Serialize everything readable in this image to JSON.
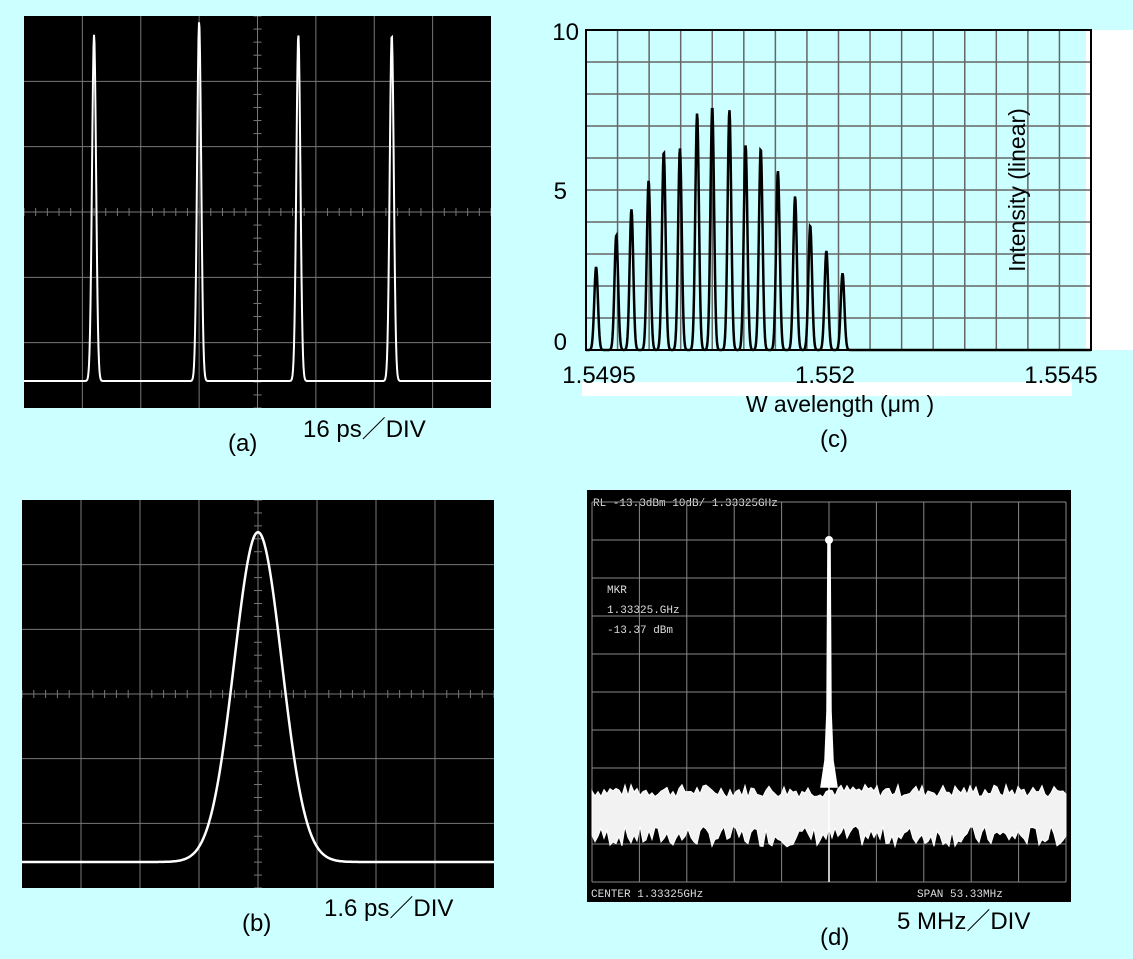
{
  "panels": {
    "a": {
      "caption": "(a)",
      "scale": "16 ps／DIV"
    },
    "b": {
      "caption": "(b)",
      "scale": "1.6 ps／DIV"
    },
    "c": {
      "caption": "(c)"
    },
    "d": {
      "caption": "(d)",
      "scale": "5 MHz／DIV",
      "screen_top": "RL -13.3dBm    10dB/   1.33325GHz",
      "marker_title": "MKR",
      "marker_freq": "1.33325.GHz",
      "marker_level": "-13.37 dBm",
      "screen_center": "CENTER 1.33325GHz",
      "screen_span": "SPAN 53.33MHz"
    }
  },
  "chart_data": [
    {
      "id": "a",
      "type": "line",
      "title": "",
      "xlabel": "",
      "ylabel": "",
      "x_scale": "16 ps/DIV",
      "divisions": [
        8,
        6
      ],
      "pulse_centers_div": [
        1.2,
        3.0,
        4.7,
        6.3
      ],
      "pulse_heights_div": [
        5.3,
        5.5,
        5.3,
        5.3
      ],
      "grid": true
    },
    {
      "id": "b",
      "type": "line",
      "title": "",
      "xlabel": "",
      "ylabel": "",
      "x_scale": "1.6 ps/DIV",
      "divisions": [
        8,
        6
      ],
      "pulse_center_div": 4.0,
      "pulse_height_div": 5.1,
      "pulse_fwhm_div": 0.95,
      "grid": true
    },
    {
      "id": "c",
      "type": "line",
      "title": "",
      "xlabel": "W avelength (μm )",
      "ylabel": "Intensity (linear)",
      "xlim": [
        1.5495,
        1.5545
      ],
      "ylim": [
        0,
        10
      ],
      "x_ticks": [
        "1.5495",
        "1.552",
        "1.5545"
      ],
      "y_ticks": [
        "0",
        "5",
        "10"
      ],
      "grid": true,
      "peaks_x": [
        1.5496,
        1.5498,
        1.54995,
        1.55012,
        1.55027,
        1.55043,
        1.5506,
        1.55075,
        1.55092,
        1.55108,
        1.55123,
        1.5514,
        1.55157,
        1.55172,
        1.55188,
        1.55204
      ],
      "peaks_y": [
        2.6,
        3.6,
        4.4,
        5.3,
        6.2,
        6.3,
        7.4,
        7.6,
        7.5,
        6.4,
        6.3,
        5.6,
        4.8,
        3.9,
        3.1,
        2.4
      ]
    },
    {
      "id": "d",
      "type": "line",
      "title": "",
      "xlabel": "",
      "ylabel": "",
      "x_scale": "5 MHz/DIV",
      "divisions": [
        10,
        10
      ],
      "center_freq": "1.33325GHz",
      "span": "53.33MHz",
      "peak_level_div": 9.0,
      "noise_floor_div": [
        1.2,
        2.4
      ],
      "grid": true
    }
  ]
}
